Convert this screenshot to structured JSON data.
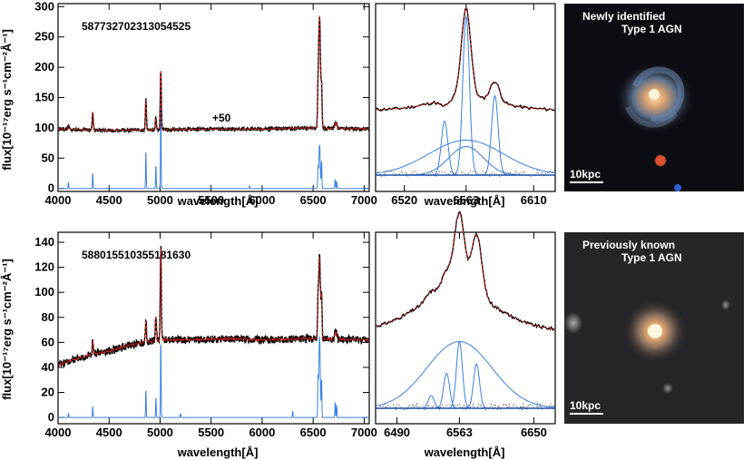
{
  "chart_data": [
    {
      "type": "line",
      "panel": "top-full-spectrum",
      "id_label": "587732702313054525",
      "annotation": "+50",
      "xlabel": "wavelength[Å]",
      "ylabel": "flux[10⁻¹⁷erg s⁻¹cm⁻²Å⁻¹]",
      "xlim": [
        4000,
        7050
      ],
      "ylim": [
        -5,
        305
      ],
      "xticks": [
        4000,
        4500,
        5000,
        5500,
        6000,
        6500,
        7000
      ],
      "yticks": [
        0,
        50,
        100,
        150,
        200,
        250,
        300
      ],
      "continuum": [
        [
          4000,
          98
        ],
        [
          4500,
          96
        ],
        [
          5000,
          97
        ],
        [
          5500,
          98
        ],
        [
          6000,
          98
        ],
        [
          6500,
          100
        ],
        [
          7050,
          98
        ]
      ],
      "emission_lines": [
        [
          4102,
          8
        ],
        [
          4340,
          30
        ],
        [
          4861,
          50
        ],
        [
          4959,
          20
        ],
        [
          5007,
          100
        ],
        [
          6548,
          40
        ],
        [
          6563,
          185
        ],
        [
          6583,
          60
        ],
        [
          6716,
          10
        ],
        [
          6731,
          8
        ]
      ],
      "model_lines": [
        [
          4102,
          10
        ],
        [
          4340,
          25
        ],
        [
          4861,
          62
        ],
        [
          4959,
          38
        ],
        [
          5007,
          140
        ],
        [
          5876,
          4
        ],
        [
          6548,
          30
        ],
        [
          6563,
          72
        ],
        [
          6583,
          45
        ],
        [
          6716,
          15
        ],
        [
          6731,
          12
        ]
      ],
      "series": [
        {
          "name": "",
          "color": "#000000"
        },
        {
          "name": "",
          "color": "#e0261e"
        },
        {
          "name": "",
          "color": "#3b7fe0"
        }
      ]
    },
    {
      "type": "line",
      "panel": "top-halpha-zoom",
      "xlabel": "wavelength[Å]",
      "xlim": [
        6500,
        6625
      ],
      "xticks": [
        6520,
        6563,
        6610
      ],
      "broad_component": {
        "center": 6563,
        "peak": 0.22
      },
      "very_broad_component": {
        "center": 6563,
        "peak": 0.5
      },
      "narrow_components": [
        [
          6548,
          0.34
        ],
        [
          6563,
          1.0
        ],
        [
          6583,
          0.5
        ]
      ],
      "spectrum_peaks": [
        [
          6548,
          0.38
        ],
        [
          6563,
          1.0
        ],
        [
          6583,
          0.55
        ]
      ]
    },
    {
      "type": "line",
      "panel": "bottom-full-spectrum",
      "id_label": "588015510355181630",
      "xlabel": "wavelength[Å]",
      "ylabel": "flux[10⁻¹⁷erg s⁻¹cm⁻²Å⁻¹]",
      "xlim": [
        4000,
        7050
      ],
      "ylim": [
        -5,
        148
      ],
      "xticks": [
        4000,
        4500,
        5000,
        5500,
        6000,
        6500,
        7000
      ],
      "yticks": [
        0,
        20,
        40,
        60,
        80,
        100,
        120,
        140
      ],
      "continuum": [
        [
          4000,
          42
        ],
        [
          4300,
          50
        ],
        [
          4500,
          53
        ],
        [
          4700,
          58
        ],
        [
          5000,
          62
        ],
        [
          5300,
          62
        ],
        [
          5700,
          63
        ],
        [
          6000,
          62
        ],
        [
          6500,
          63
        ],
        [
          7050,
          62
        ]
      ],
      "emission_lines": [
        [
          4340,
          10
        ],
        [
          4861,
          18
        ],
        [
          4959,
          20
        ],
        [
          5007,
          75
        ],
        [
          6548,
          20
        ],
        [
          6563,
          65
        ],
        [
          6583,
          30
        ],
        [
          6716,
          6
        ],
        [
          6731,
          5
        ]
      ],
      "model_lines": [
        [
          4102,
          3
        ],
        [
          4340,
          9
        ],
        [
          4861,
          22
        ],
        [
          4959,
          16
        ],
        [
          5007,
          61
        ],
        [
          5200,
          3
        ],
        [
          6300,
          5
        ],
        [
          6548,
          28
        ],
        [
          6563,
          65
        ],
        [
          6583,
          30
        ],
        [
          6716,
          12
        ],
        [
          6731,
          10
        ]
      ]
    },
    {
      "type": "line",
      "panel": "bottom-halpha-zoom",
      "xlabel": "wavelength[Å]",
      "xlim": [
        6465,
        6675
      ],
      "xticks": [
        6490,
        6563,
        6650
      ],
      "broad_component": {
        "center": 6563,
        "peak": 0.42
      },
      "narrow_components": [
        [
          6530,
          0.08
        ],
        [
          6548,
          0.22
        ],
        [
          6563,
          0.42
        ],
        [
          6583,
          0.28
        ]
      ],
      "spectrum_peaks": [
        [
          6530,
          0.55
        ],
        [
          6548,
          0.63
        ],
        [
          6563,
          1.0
        ],
        [
          6583,
          0.9
        ]
      ]
    }
  ],
  "images": [
    {
      "caption_line1": "Newly identified",
      "caption_line2": "Type 1 AGN",
      "scale_label": "10kpc"
    },
    {
      "caption_line1": "Previously known",
      "caption_line2": "Type 1 AGN",
      "scale_label": "10kpc"
    }
  ]
}
